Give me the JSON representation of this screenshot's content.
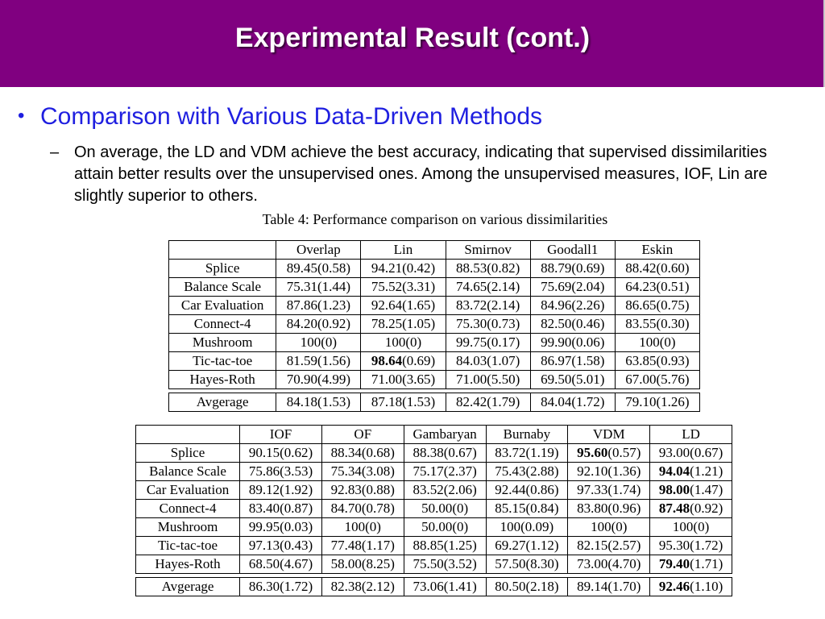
{
  "slide": {
    "title": "Experimental Result (cont.)",
    "bullet": "Comparison with Various Data-Driven Methods",
    "sub_bullet": "On average, the LD and VDM achieve the best accuracy, indicating that supervised dissimilarities attain better results over the unsupervised ones. Among the unsupervised measures, IOF, Lin are slightly superior to others.",
    "caption": "Table 4: Performance comparison on various dissimilarities",
    "bullet_mark": "•",
    "dash_mark": "–"
  },
  "table1": {
    "headers": [
      "",
      "Overlap",
      "Lin",
      "Smirnov",
      "Goodall1",
      "Eskin"
    ],
    "rows": [
      [
        "Splice",
        "89.45(0.58)",
        "94.21(0.42)",
        "88.53(0.82)",
        "88.79(0.69)",
        "88.42(0.60)"
      ],
      [
        "Balance Scale",
        "75.31(1.44)",
        "75.52(3.31)",
        "74.65(2.14)",
        "75.69(2.04)",
        "64.23(0.51)"
      ],
      [
        "Car Evaluation",
        "87.86(1.23)",
        "92.64(1.65)",
        "83.72(2.14)",
        "84.96(2.26)",
        "86.65(0.75)"
      ],
      [
        "Connect-4",
        "84.20(0.92)",
        "78.25(1.05)",
        "75.30(0.73)",
        "82.50(0.46)",
        "83.55(0.30)"
      ],
      [
        "Mushroom",
        "100(0)",
        "100(0)",
        "99.75(0.17)",
        "99.90(0.06)",
        "100(0)"
      ],
      [
        "Tic-tac-toe",
        "81.59(1.56)",
        "98.64(0.69)",
        "84.03(1.07)",
        "86.97(1.58)",
        "63.85(0.93)"
      ],
      [
        "Hayes-Roth",
        "70.90(4.99)",
        "71.00(3.65)",
        "71.00(5.50)",
        "69.50(5.01)",
        "67.00(5.76)"
      ]
    ],
    "average": [
      "Avgerage",
      "84.18(1.53)",
      "87.18(1.53)",
      "82.42(1.79)",
      "84.04(1.72)",
      "79.10(1.26)"
    ],
    "bold_cells": [
      [
        5,
        2,
        "98.64",
        "(0.69)"
      ]
    ]
  },
  "table2": {
    "headers": [
      "",
      "IOF",
      "OF",
      "Gambaryan",
      "Burnaby",
      "VDM",
      "LD"
    ],
    "rows": [
      [
        "Splice",
        "90.15(0.62)",
        "88.34(0.68)",
        "88.38(0.67)",
        "83.72(1.19)",
        "95.60(0.57)",
        "93.00(0.67)"
      ],
      [
        "Balance Scale",
        "75.86(3.53)",
        "75.34(3.08)",
        "75.17(2.37)",
        "75.43(2.88)",
        "92.10(1.36)",
        "94.04(1.21)"
      ],
      [
        "Car Evaluation",
        "89.12(1.92)",
        "92.83(0.88)",
        "83.52(2.06)",
        "92.44(0.86)",
        "97.33(1.74)",
        "98.00(1.47)"
      ],
      [
        "Connect-4",
        "83.40(0.87)",
        "84.70(0.78)",
        "50.00(0)",
        "85.15(0.84)",
        "83.80(0.96)",
        "87.48(0.92)"
      ],
      [
        "Mushroom",
        "99.95(0.03)",
        "100(0)",
        "50.00(0)",
        "100(0.09)",
        "100(0)",
        "100(0)"
      ],
      [
        "Tic-tac-toe",
        "97.13(0.43)",
        "77.48(1.17)",
        "88.85(1.25)",
        "69.27(1.12)",
        "82.15(2.57)",
        "95.30(1.72)"
      ],
      [
        "Hayes-Roth",
        "68.50(4.67)",
        "58.00(8.25)",
        "75.50(3.52)",
        "57.50(8.30)",
        "73.00(4.70)",
        "79.40(1.71)"
      ]
    ],
    "average": [
      "Avgerage",
      "86.30(1.72)",
      "82.38(2.12)",
      "73.06(1.41)",
      "80.50(2.18)",
      "89.14(1.70)",
      "92.46(1.10)"
    ],
    "bold_cells": [
      [
        0,
        5,
        "95.60",
        "(0.57)"
      ],
      [
        1,
        6,
        "94.04",
        "(1.21)"
      ],
      [
        2,
        6,
        "98.00",
        "(1.47)"
      ],
      [
        3,
        6,
        "87.48",
        "(0.92)"
      ],
      [
        6,
        6,
        "79.40",
        "(1.71)"
      ],
      [
        "avg",
        6,
        "92.46",
        "(1.10)"
      ]
    ]
  },
  "colors": {
    "title_bar": "#800080",
    "title_text": "#ffffff",
    "bullet_text": "#1f1fe0",
    "body_text": "#000000"
  }
}
